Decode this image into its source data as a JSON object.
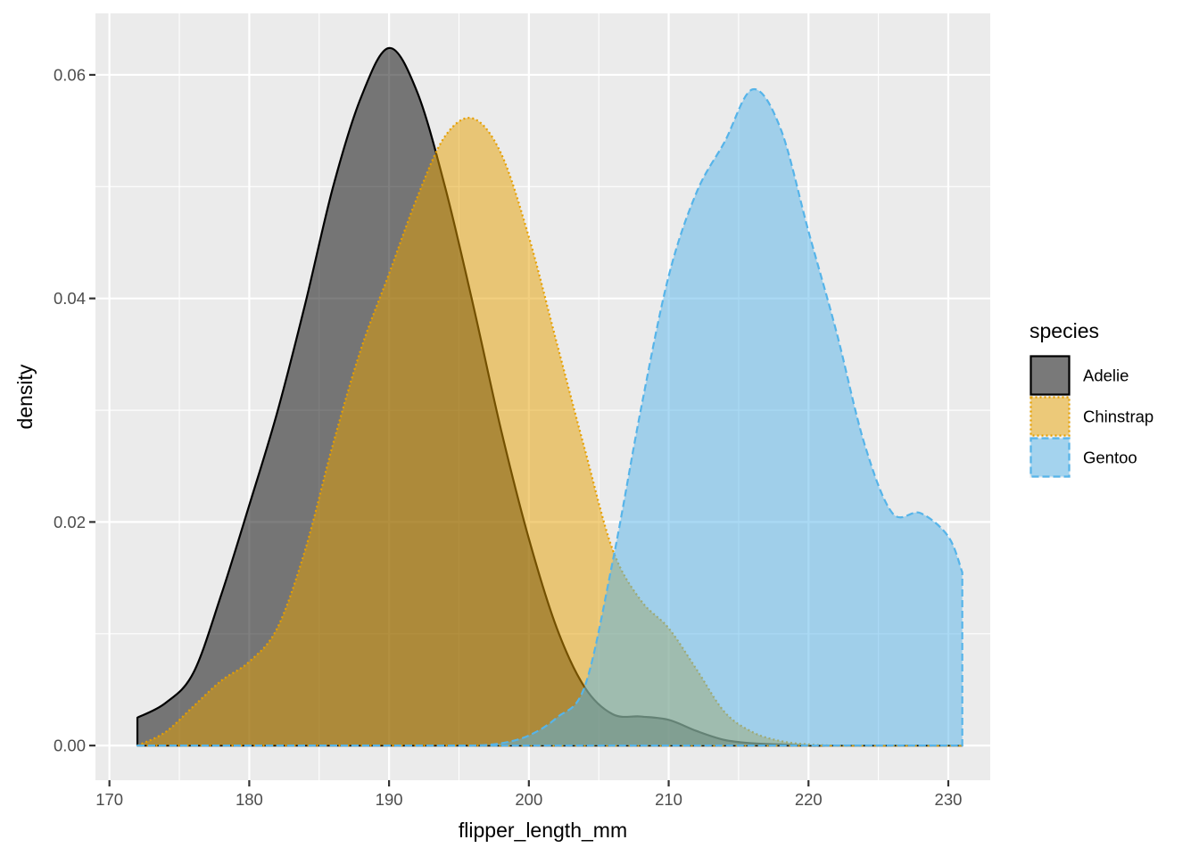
{
  "chart_data": {
    "type": "area",
    "subtype": "density",
    "xlabel": "flipper_length_mm",
    "ylabel": "density",
    "xlim": [
      169.0,
      233.0
    ],
    "ylim": [
      -0.0031,
      0.0655
    ],
    "x_ticks": [
      170,
      180,
      190,
      200,
      210,
      220,
      230
    ],
    "x_tick_labels": [
      "170",
      "180",
      "190",
      "200",
      "210",
      "220",
      "230"
    ],
    "y_ticks": [
      0.0,
      0.02,
      0.04,
      0.06
    ],
    "y_tick_labels": [
      "0.00",
      "0.02",
      "0.04",
      "0.06"
    ],
    "grid": true,
    "legend": {
      "title": "species",
      "position": "right"
    },
    "series": [
      {
        "name": "Adelie",
        "fill": "#000000",
        "fill_opacity": 0.5,
        "stroke": "#000000",
        "linetype": "solid",
        "x": [
          172,
          174,
          176,
          178,
          180,
          182,
          184,
          186,
          188,
          190,
          192,
          194,
          196,
          198,
          200,
          202,
          204,
          206,
          208,
          210,
          212,
          214,
          216,
          218,
          220,
          222,
          224,
          226,
          228,
          231
        ],
        "y": [
          0.0025,
          0.0038,
          0.0065,
          0.0135,
          0.0215,
          0.0298,
          0.0395,
          0.05,
          0.058,
          0.0624,
          0.0585,
          0.05,
          0.0395,
          0.0283,
          0.0185,
          0.0105,
          0.0052,
          0.0028,
          0.0026,
          0.0023,
          0.0013,
          0.0005,
          0.0002,
          0.0001,
          0.0,
          0.0,
          0.0,
          0.0,
          0.0,
          0.0
        ]
      },
      {
        "name": "Chinstrap",
        "fill": "#E69F00",
        "fill_opacity": 0.5,
        "stroke": "#E69F00",
        "linetype": "dotted",
        "x": [
          172,
          174,
          176,
          178,
          180,
          182,
          184,
          186,
          188,
          190,
          192,
          194,
          196,
          198,
          200,
          202,
          204,
          206,
          208,
          210,
          212,
          214,
          216,
          218,
          220,
          222,
          224,
          226,
          228,
          231
        ],
        "y": [
          0.0,
          0.0012,
          0.0035,
          0.0058,
          0.0075,
          0.0105,
          0.0175,
          0.027,
          0.0355,
          0.0422,
          0.049,
          0.0545,
          0.0561,
          0.053,
          0.0455,
          0.036,
          0.0265,
          0.0175,
          0.013,
          0.0105,
          0.0068,
          0.003,
          0.0012,
          0.0004,
          0.0001,
          0.0,
          0.0,
          0.0,
          0.0,
          0.0
        ]
      },
      {
        "name": "Gentoo",
        "fill": "#56B4E9",
        "fill_opacity": 0.5,
        "stroke": "#56B4E9",
        "linetype": "dashed",
        "x": [
          172,
          174,
          176,
          178,
          180,
          182,
          184,
          186,
          188,
          190,
          192,
          194,
          196,
          198,
          200,
          202,
          204,
          206,
          208,
          210,
          212,
          214,
          216,
          218,
          220,
          222,
          224,
          226,
          228,
          230,
          231
        ],
        "y": [
          0.0,
          0.0,
          0.0,
          0.0,
          0.0,
          0.0,
          0.0,
          0.0,
          0.0,
          0.0,
          0.0,
          0.0,
          0.0,
          0.0002,
          0.0009,
          0.0025,
          0.0053,
          0.0165,
          0.03,
          0.042,
          0.0495,
          0.054,
          0.0587,
          0.0552,
          0.046,
          0.037,
          0.027,
          0.0208,
          0.0208,
          0.0187,
          0.0155
        ]
      }
    ]
  }
}
